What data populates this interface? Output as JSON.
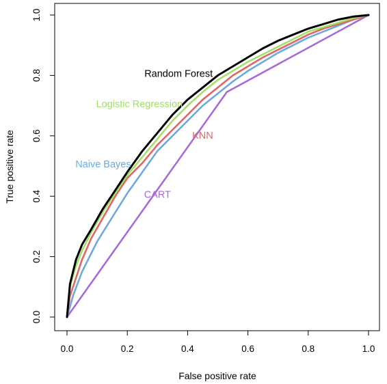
{
  "chart_data": {
    "type": "line",
    "xlabel": "False positive rate",
    "ylabel": "True positive rate",
    "xlim": [
      0,
      1
    ],
    "ylim": [
      0,
      1
    ],
    "xticks": [
      "0.0",
      "0.2",
      "0.4",
      "0.6",
      "0.8",
      "1.0"
    ],
    "yticks": [
      "0.0",
      "0.2",
      "0.4",
      "0.6",
      "0.8",
      "1.0"
    ],
    "grid": false,
    "legend": "inline labels",
    "series": [
      {
        "name": "Random Forest",
        "color": "#000000",
        "x": [
          0,
          0.01,
          0.03,
          0.05,
          0.08,
          0.12,
          0.16,
          0.2,
          0.25,
          0.3,
          0.35,
          0.4,
          0.45,
          0.5,
          0.55,
          0.6,
          0.65,
          0.7,
          0.75,
          0.8,
          0.85,
          0.9,
          0.95,
          1.0
        ],
        "y": [
          0,
          0.11,
          0.19,
          0.24,
          0.29,
          0.36,
          0.42,
          0.48,
          0.55,
          0.61,
          0.67,
          0.72,
          0.76,
          0.8,
          0.83,
          0.86,
          0.89,
          0.915,
          0.935,
          0.955,
          0.97,
          0.985,
          0.995,
          1.0
        ]
      },
      {
        "name": "Logistic Regression",
        "color": "#a3e065",
        "x": [
          0,
          0.01,
          0.03,
          0.05,
          0.08,
          0.12,
          0.16,
          0.2,
          0.25,
          0.3,
          0.35,
          0.4,
          0.45,
          0.5,
          0.55,
          0.6,
          0.65,
          0.7,
          0.75,
          0.8,
          0.85,
          0.9,
          0.95,
          1.0
        ],
        "y": [
          0,
          0.1,
          0.17,
          0.22,
          0.28,
          0.35,
          0.41,
          0.47,
          0.53,
          0.59,
          0.65,
          0.7,
          0.745,
          0.785,
          0.815,
          0.845,
          0.87,
          0.895,
          0.92,
          0.945,
          0.96,
          0.975,
          0.99,
          1.0
        ]
      },
      {
        "name": "KNN",
        "color": "#e06666",
        "x": [
          0,
          0.01,
          0.03,
          0.05,
          0.08,
          0.12,
          0.16,
          0.2,
          0.25,
          0.3,
          0.35,
          0.4,
          0.45,
          0.5,
          0.55,
          0.6,
          0.65,
          0.7,
          0.75,
          0.8,
          0.85,
          0.9,
          0.95,
          1.0
        ],
        "y": [
          0,
          0.07,
          0.13,
          0.19,
          0.26,
          0.33,
          0.4,
          0.46,
          0.51,
          0.57,
          0.62,
          0.67,
          0.72,
          0.76,
          0.8,
          0.83,
          0.86,
          0.885,
          0.91,
          0.935,
          0.955,
          0.97,
          0.985,
          1.0
        ]
      },
      {
        "name": "Naive Bayes",
        "color": "#6fa8dc",
        "x": [
          0,
          0.02,
          0.05,
          0.1,
          0.15,
          0.2,
          0.25,
          0.3,
          0.35,
          0.4,
          0.45,
          0.5,
          0.55,
          0.6,
          0.65,
          0.7,
          0.75,
          0.8,
          0.85,
          0.9,
          0.95,
          1.0
        ],
        "y": [
          0,
          0.07,
          0.15,
          0.25,
          0.33,
          0.41,
          0.48,
          0.55,
          0.6,
          0.65,
          0.7,
          0.74,
          0.78,
          0.815,
          0.845,
          0.875,
          0.9,
          0.925,
          0.945,
          0.965,
          0.985,
          1.0
        ]
      },
      {
        "name": "CART",
        "color": "#a56bd6",
        "x": [
          0,
          0.53,
          1.0
        ],
        "y": [
          0,
          0.745,
          1.0
        ]
      }
    ],
    "labels": [
      {
        "text": "Random Forest",
        "series": 0,
        "x": 0.37,
        "y": 0.795
      },
      {
        "text": "Logistic Regression",
        "series": 1,
        "x": 0.24,
        "y": 0.695
      },
      {
        "text": "KNN",
        "series": 2,
        "x": 0.45,
        "y": 0.59
      },
      {
        "text": "Naive Bayes",
        "series": 3,
        "x": 0.12,
        "y": 0.495
      },
      {
        "text": "CART",
        "series": 4,
        "x": 0.3,
        "y": 0.395
      }
    ]
  }
}
